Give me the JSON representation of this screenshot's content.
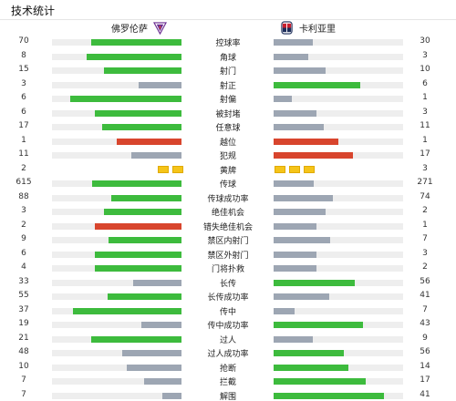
{
  "header": {
    "title": "技术统计"
  },
  "teams": {
    "home": "佛罗伦萨",
    "away": "卡利亚里"
  },
  "colors": {
    "win": "#3dbb3d",
    "lose": "#9da6b3",
    "equal": "#d8452d",
    "card": "#f5c419",
    "track": "#eeeeee"
  },
  "stats": [
    {
      "label": "控球率",
      "home": "70",
      "away": "30",
      "home_fill": 0.7,
      "away_fill": 0.3,
      "home_color": "#3dbb3d",
      "away_color": "#9da6b3"
    },
    {
      "label": "角球",
      "home": "8",
      "away": "3",
      "home_fill": 0.73,
      "away_fill": 0.27,
      "home_color": "#3dbb3d",
      "away_color": "#9da6b3"
    },
    {
      "label": "射门",
      "home": "15",
      "away": "10",
      "home_fill": 0.6,
      "away_fill": 0.4,
      "home_color": "#3dbb3d",
      "away_color": "#9da6b3"
    },
    {
      "label": "射正",
      "home": "3",
      "away": "6",
      "home_fill": 0.33,
      "away_fill": 0.67,
      "home_color": "#9da6b3",
      "away_color": "#3dbb3d"
    },
    {
      "label": "射偏",
      "home": "6",
      "away": "1",
      "home_fill": 0.86,
      "away_fill": 0.14,
      "home_color": "#3dbb3d",
      "away_color": "#9da6b3"
    },
    {
      "label": "被封堵",
      "home": "6",
      "away": "3",
      "home_fill": 0.67,
      "away_fill": 0.33,
      "home_color": "#3dbb3d",
      "away_color": "#9da6b3"
    },
    {
      "label": "任意球",
      "home": "17",
      "away": "11",
      "home_fill": 0.61,
      "away_fill": 0.39,
      "home_color": "#3dbb3d",
      "away_color": "#9da6b3"
    },
    {
      "label": "越位",
      "home": "1",
      "away": "1",
      "home_fill": 0.5,
      "away_fill": 0.5,
      "home_color": "#d8452d",
      "away_color": "#d8452d"
    },
    {
      "label": "犯规",
      "home": "11",
      "away": "17",
      "home_fill": 0.39,
      "away_fill": 0.61,
      "home_color": "#9da6b3",
      "away_color": "#d8452d"
    },
    {
      "label": "黄牌",
      "home": "2",
      "away": "3",
      "type": "cards"
    },
    {
      "label": "传球",
      "home": "615",
      "away": "271",
      "home_fill": 0.69,
      "away_fill": 0.31,
      "home_color": "#3dbb3d",
      "away_color": "#9da6b3"
    },
    {
      "label": "传球成功率",
      "home": "88",
      "away": "74",
      "home_fill": 0.54,
      "away_fill": 0.46,
      "home_color": "#3dbb3d",
      "away_color": "#9da6b3"
    },
    {
      "label": "绝佳机会",
      "home": "3",
      "away": "2",
      "home_fill": 0.6,
      "away_fill": 0.4,
      "home_color": "#3dbb3d",
      "away_color": "#9da6b3"
    },
    {
      "label": "错失绝佳机会",
      "home": "2",
      "away": "1",
      "home_fill": 0.67,
      "away_fill": 0.33,
      "home_color": "#d8452d",
      "away_color": "#9da6b3"
    },
    {
      "label": "禁区内射门",
      "home": "9",
      "away": "7",
      "home_fill": 0.56,
      "away_fill": 0.44,
      "home_color": "#3dbb3d",
      "away_color": "#9da6b3"
    },
    {
      "label": "禁区外射门",
      "home": "6",
      "away": "3",
      "home_fill": 0.67,
      "away_fill": 0.33,
      "home_color": "#3dbb3d",
      "away_color": "#9da6b3"
    },
    {
      "label": "门将扑救",
      "home": "4",
      "away": "2",
      "home_fill": 0.67,
      "away_fill": 0.33,
      "home_color": "#3dbb3d",
      "away_color": "#9da6b3"
    },
    {
      "label": "长传",
      "home": "33",
      "away": "56",
      "home_fill": 0.37,
      "away_fill": 0.63,
      "home_color": "#9da6b3",
      "away_color": "#3dbb3d"
    },
    {
      "label": "长传成功率",
      "home": "55",
      "away": "41",
      "home_fill": 0.57,
      "away_fill": 0.43,
      "home_color": "#3dbb3d",
      "away_color": "#9da6b3"
    },
    {
      "label": "传中",
      "home": "37",
      "away": "7",
      "home_fill": 0.84,
      "away_fill": 0.16,
      "home_color": "#3dbb3d",
      "away_color": "#9da6b3"
    },
    {
      "label": "传中成功率",
      "home": "19",
      "away": "43",
      "home_fill": 0.31,
      "away_fill": 0.69,
      "home_color": "#9da6b3",
      "away_color": "#3dbb3d"
    },
    {
      "label": "过人",
      "home": "21",
      "away": "9",
      "home_fill": 0.7,
      "away_fill": 0.3,
      "home_color": "#3dbb3d",
      "away_color": "#9da6b3"
    },
    {
      "label": "过人成功率",
      "home": "48",
      "away": "56",
      "home_fill": 0.46,
      "away_fill": 0.54,
      "home_color": "#9da6b3",
      "away_color": "#3dbb3d"
    },
    {
      "label": "抢断",
      "home": "10",
      "away": "14",
      "home_fill": 0.42,
      "away_fill": 0.58,
      "home_color": "#9da6b3",
      "away_color": "#3dbb3d"
    },
    {
      "label": "拦截",
      "home": "7",
      "away": "17",
      "home_fill": 0.29,
      "away_fill": 0.71,
      "home_color": "#9da6b3",
      "away_color": "#3dbb3d"
    },
    {
      "label": "解围",
      "home": "7",
      "away": "41",
      "home_fill": 0.15,
      "away_fill": 0.85,
      "home_color": "#9da6b3",
      "away_color": "#3dbb3d"
    }
  ]
}
